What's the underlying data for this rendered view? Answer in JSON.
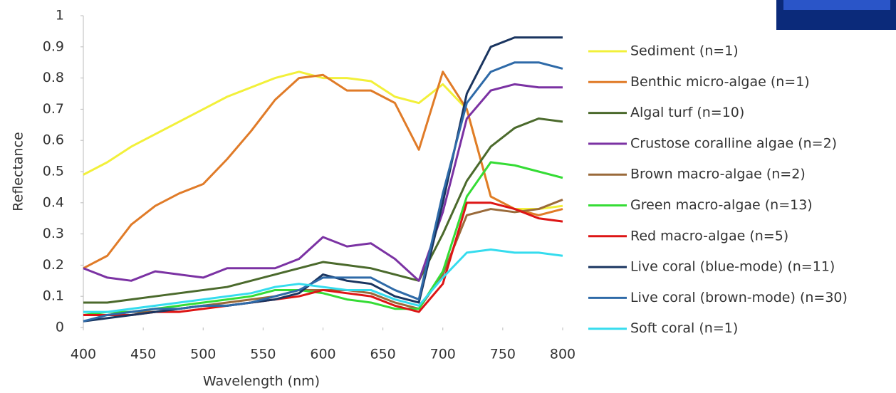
{
  "chart_data": {
    "type": "line",
    "x_label": "Wavelength (nm)",
    "y_label": "Reflectance",
    "x": [
      400,
      420,
      440,
      460,
      480,
      500,
      520,
      540,
      560,
      580,
      600,
      620,
      640,
      660,
      680,
      700,
      720,
      740,
      760,
      780,
      800
    ],
    "xlim": [
      400,
      800
    ],
    "xticks": [
      400,
      450,
      500,
      550,
      600,
      650,
      700,
      750,
      800
    ],
    "ylim": [
      0,
      1
    ],
    "yticks": [
      0,
      0.1,
      0.2,
      0.3,
      0.4,
      0.5,
      0.6,
      0.7,
      0.8,
      0.9,
      1
    ],
    "grid": false,
    "legend": "right",
    "series": [
      {
        "name": "Sediment (n=1)",
        "color": "#f2f03a",
        "values": [
          0.49,
          0.53,
          0.58,
          0.62,
          0.66,
          0.7,
          0.74,
          0.77,
          0.8,
          0.82,
          0.8,
          0.8,
          0.79,
          0.74,
          0.72,
          0.78,
          0.7,
          0.42,
          0.38,
          0.38,
          0.39
        ]
      },
      {
        "name": "Benthic micro-algae (n=1)",
        "color": "#e07b28",
        "values": [
          0.19,
          0.23,
          0.33,
          0.39,
          0.43,
          0.46,
          0.54,
          0.63,
          0.73,
          0.8,
          0.81,
          0.76,
          0.76,
          0.72,
          0.57,
          0.82,
          0.7,
          0.42,
          0.38,
          0.36,
          0.38
        ]
      },
      {
        "name": "Algal turf (n=10)",
        "color": "#4b6a2c",
        "values": [
          0.08,
          0.08,
          0.09,
          0.1,
          0.11,
          0.12,
          0.13,
          0.15,
          0.17,
          0.19,
          0.21,
          0.2,
          0.19,
          0.17,
          0.15,
          0.3,
          0.47,
          0.58,
          0.64,
          0.67,
          0.66
        ]
      },
      {
        "name": "Crustose coralline algae (n=2)",
        "color": "#7b32a3",
        "values": [
          0.19,
          0.16,
          0.15,
          0.18,
          0.17,
          0.16,
          0.19,
          0.19,
          0.19,
          0.22,
          0.29,
          0.26,
          0.27,
          0.22,
          0.15,
          0.37,
          0.67,
          0.76,
          0.78,
          0.77,
          0.77
        ]
      },
      {
        "name": "Brown macro-algae (n=2)",
        "color": "#9a6a3a",
        "values": [
          0.04,
          0.04,
          0.05,
          0.05,
          0.06,
          0.07,
          0.08,
          0.09,
          0.1,
          0.12,
          0.12,
          0.12,
          0.11,
          0.08,
          0.06,
          0.17,
          0.36,
          0.38,
          0.37,
          0.38,
          0.41
        ]
      },
      {
        "name": "Green macro-algae (n=13)",
        "color": "#35dc35",
        "values": [
          0.04,
          0.05,
          0.05,
          0.06,
          0.07,
          0.08,
          0.09,
          0.1,
          0.12,
          0.12,
          0.11,
          0.09,
          0.08,
          0.06,
          0.06,
          0.18,
          0.42,
          0.53,
          0.52,
          0.5,
          0.48
        ]
      },
      {
        "name": "Red macro-algae (n=5)",
        "color": "#dd1515",
        "values": [
          0.04,
          0.04,
          0.04,
          0.05,
          0.05,
          0.06,
          0.07,
          0.08,
          0.09,
          0.1,
          0.12,
          0.11,
          0.1,
          0.07,
          0.05,
          0.14,
          0.4,
          0.4,
          0.38,
          0.35,
          0.34
        ]
      },
      {
        "name": "Live coral (blue-mode) (n=11)",
        "color": "#1a3560",
        "values": [
          0.02,
          0.03,
          0.04,
          0.05,
          0.06,
          0.07,
          0.07,
          0.08,
          0.09,
          0.11,
          0.17,
          0.15,
          0.14,
          0.1,
          0.08,
          0.4,
          0.75,
          0.9,
          0.93,
          0.93,
          0.93
        ]
      },
      {
        "name": "Live coral (brown-mode) (n=30)",
        "color": "#2e6aa8",
        "values": [
          0.02,
          0.04,
          0.05,
          0.06,
          0.06,
          0.07,
          0.07,
          0.08,
          0.1,
          0.12,
          0.16,
          0.16,
          0.16,
          0.12,
          0.09,
          0.43,
          0.72,
          0.82,
          0.85,
          0.85,
          0.83
        ]
      },
      {
        "name": "Soft coral (n=1)",
        "color": "#35dcee",
        "values": [
          0.05,
          0.05,
          0.06,
          0.07,
          0.08,
          0.09,
          0.1,
          0.11,
          0.13,
          0.14,
          0.13,
          0.12,
          0.12,
          0.09,
          0.07,
          0.16,
          0.24,
          0.25,
          0.24,
          0.24,
          0.23
        ]
      }
    ]
  }
}
